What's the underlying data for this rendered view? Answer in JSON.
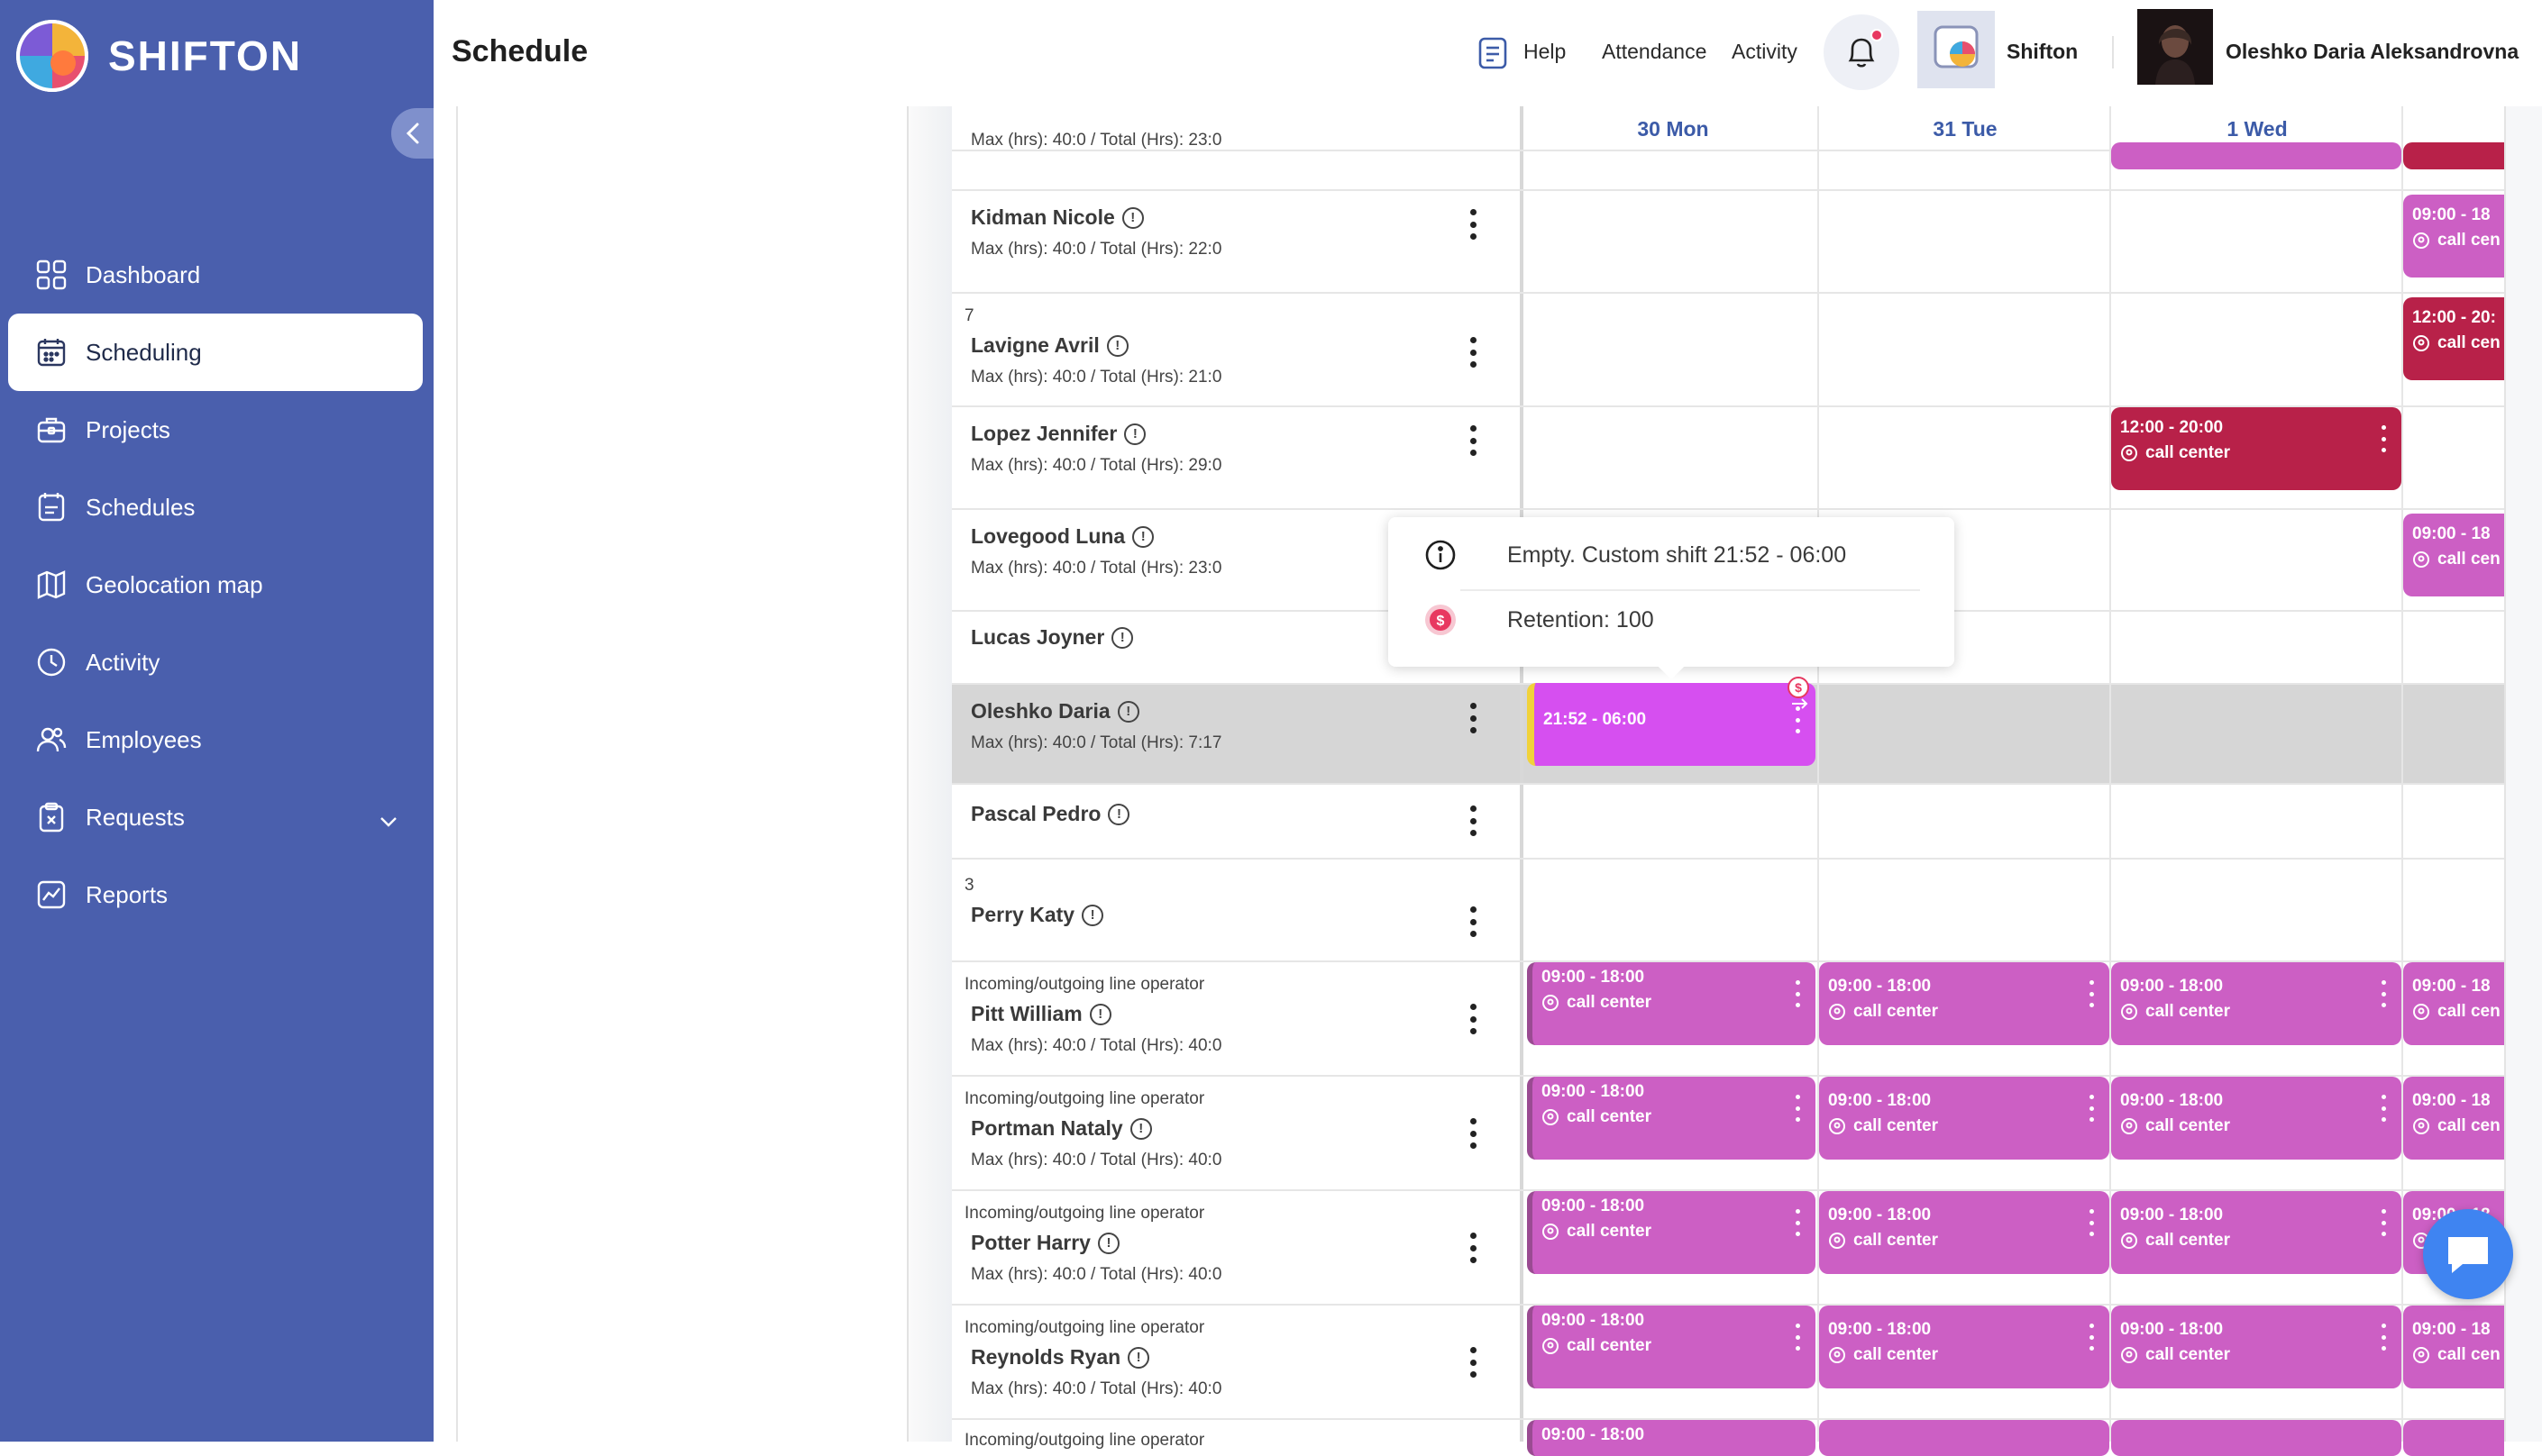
{
  "brand": {
    "name": "SHIFTON"
  },
  "sidebar": {
    "items": [
      {
        "label": "Dashboard",
        "icon": "dashboard-icon"
      },
      {
        "label": "Scheduling",
        "icon": "calendar-icon",
        "active": true
      },
      {
        "label": "Projects",
        "icon": "briefcase-icon"
      },
      {
        "label": "Schedules",
        "icon": "schedule-icon"
      },
      {
        "label": "Geolocation map",
        "icon": "map-icon"
      },
      {
        "label": "Activity",
        "icon": "clock-icon"
      },
      {
        "label": "Employees",
        "icon": "users-icon"
      },
      {
        "label": "Requests",
        "icon": "request-icon",
        "has_children": true
      },
      {
        "label": "Reports",
        "icon": "chart-icon"
      }
    ]
  },
  "header": {
    "title": "Schedule",
    "help": "Help",
    "attendance": "Attendance",
    "activity": "Activity",
    "company": "Shifton",
    "user": "Oleshko Daria Aleksandrovna"
  },
  "columns": [
    "30 Mon",
    "31 Tue",
    "1 Wed"
  ],
  "employees": [
    {
      "top_cut": "Max (hrs): 40:0 / Total (Hrs): 23:0"
    },
    {
      "name": "Kidman Nicole",
      "stats": "Max (hrs): 40:0 / Total (Hrs): 22:0"
    },
    {
      "number": "7",
      "name": "Lavigne Avril",
      "stats": "Max (hrs): 40:0 / Total (Hrs): 21:0"
    },
    {
      "name": "Lopez Jennifer",
      "stats": "Max (hrs): 40:0 / Total (Hrs): 29:0"
    },
    {
      "name": "Lovegood Luna",
      "stats": "Max (hrs): 40:0 / Total (Hrs): 23:0"
    },
    {
      "name": "Lucas Joyner"
    },
    {
      "name": "Oleshko Daria",
      "stats": "Max (hrs): 40:0 / Total (Hrs): 7:17"
    },
    {
      "name": "Pascal Pedro"
    },
    {
      "number": "3",
      "name": "Perry Katy"
    },
    {
      "role": "Incoming/outgoing line operator",
      "name": "Pitt William",
      "stats": "Max (hrs): 40:0 / Total (Hrs): 40:0"
    },
    {
      "role": "Incoming/outgoing line operator",
      "name": "Portman Nataly",
      "stats": "Max (hrs): 40:0 / Total (Hrs): 40:0"
    },
    {
      "role": "Incoming/outgoing line operator",
      "name": "Potter Harry",
      "stats": "Max (hrs): 40:0 / Total (Hrs): 40:0"
    },
    {
      "role": "Incoming/outgoing line operator",
      "name": "Reynolds Ryan",
      "stats": "Max (hrs): 40:0 / Total (Hrs): 40:0"
    },
    {
      "role": "Incoming/outgoing line operator"
    }
  ],
  "shifts": {
    "standard_time": "09:00 - 18:00",
    "evening_time": "12:00 - 20:00",
    "location": "call center",
    "truncated_time": "09:00 - 18",
    "truncated_evening": "12:00 - 20:",
    "truncated_location": "call cen",
    "custom_time": "21:52 - 06:00",
    "bottom_cut_time": "09:00 - 18:00"
  },
  "tooltip": {
    "line1": "Empty. Custom shift 21:52 - 06:00",
    "line2": "Retention: 100"
  },
  "colors": {
    "sidebar": "#4a5fad",
    "shift_pink": "#cc5fc4",
    "shift_crimson": "#b82149",
    "shift_custom": "#d64ff0",
    "accent_blue": "#3c5ba8"
  }
}
